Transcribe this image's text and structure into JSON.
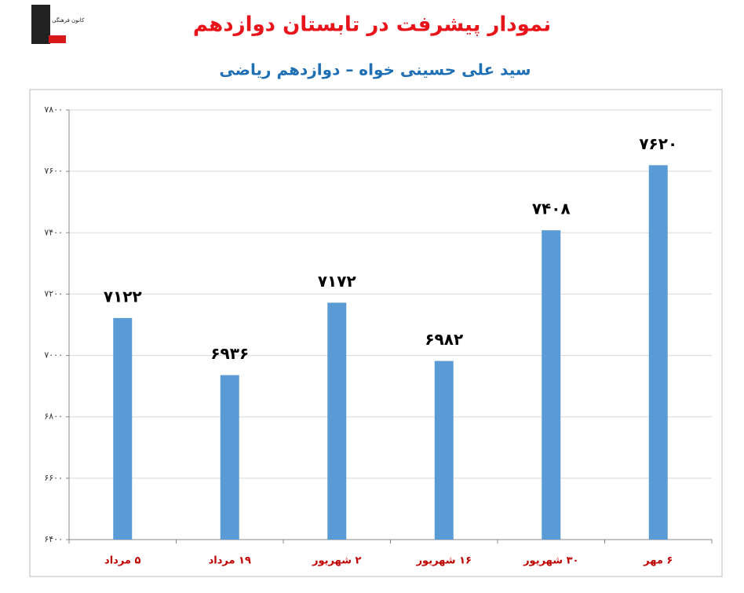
{
  "logo": {
    "text": "کانون فرهنگی آموزش"
  },
  "chart_data": {
    "type": "bar",
    "title": "نمودار پیشرفت در تابستان دوازدهم",
    "subtitle": "سید علی حسینی خواه – دوازدهم ریاضی",
    "categories": [
      "۵ مرداد",
      "۱۹ مرداد",
      "۲ شهریور",
      "۱۶ شهریور",
      "۳۰ شهریور",
      "۶ مهر"
    ],
    "values": [
      7122,
      6936,
      7172,
      6982,
      7408,
      7620
    ],
    "value_labels": [
      "۷۱۲۲",
      "۶۹۳۶",
      "۷۱۷۲",
      "۶۹۸۲",
      "۷۴۰۸",
      "۷۶۲۰"
    ],
    "color": "#5b9bd5",
    "ylim": [
      6400,
      7800
    ],
    "yticks": [
      {
        "value": 6400,
        "label": "۶۴۰۰"
      },
      {
        "value": 6600,
        "label": "۶۶۰۰"
      },
      {
        "value": 6800,
        "label": "۶۸۰۰"
      },
      {
        "value": 7000,
        "label": "۷۰۰۰"
      },
      {
        "value": 7200,
        "label": "۷۲۰۰"
      },
      {
        "value": 7400,
        "label": "۷۴۰۰"
      },
      {
        "value": 7600,
        "label": "۷۶۰۰"
      },
      {
        "value": 7800,
        "label": "۷۸۰۰"
      }
    ],
    "grid": true
  }
}
